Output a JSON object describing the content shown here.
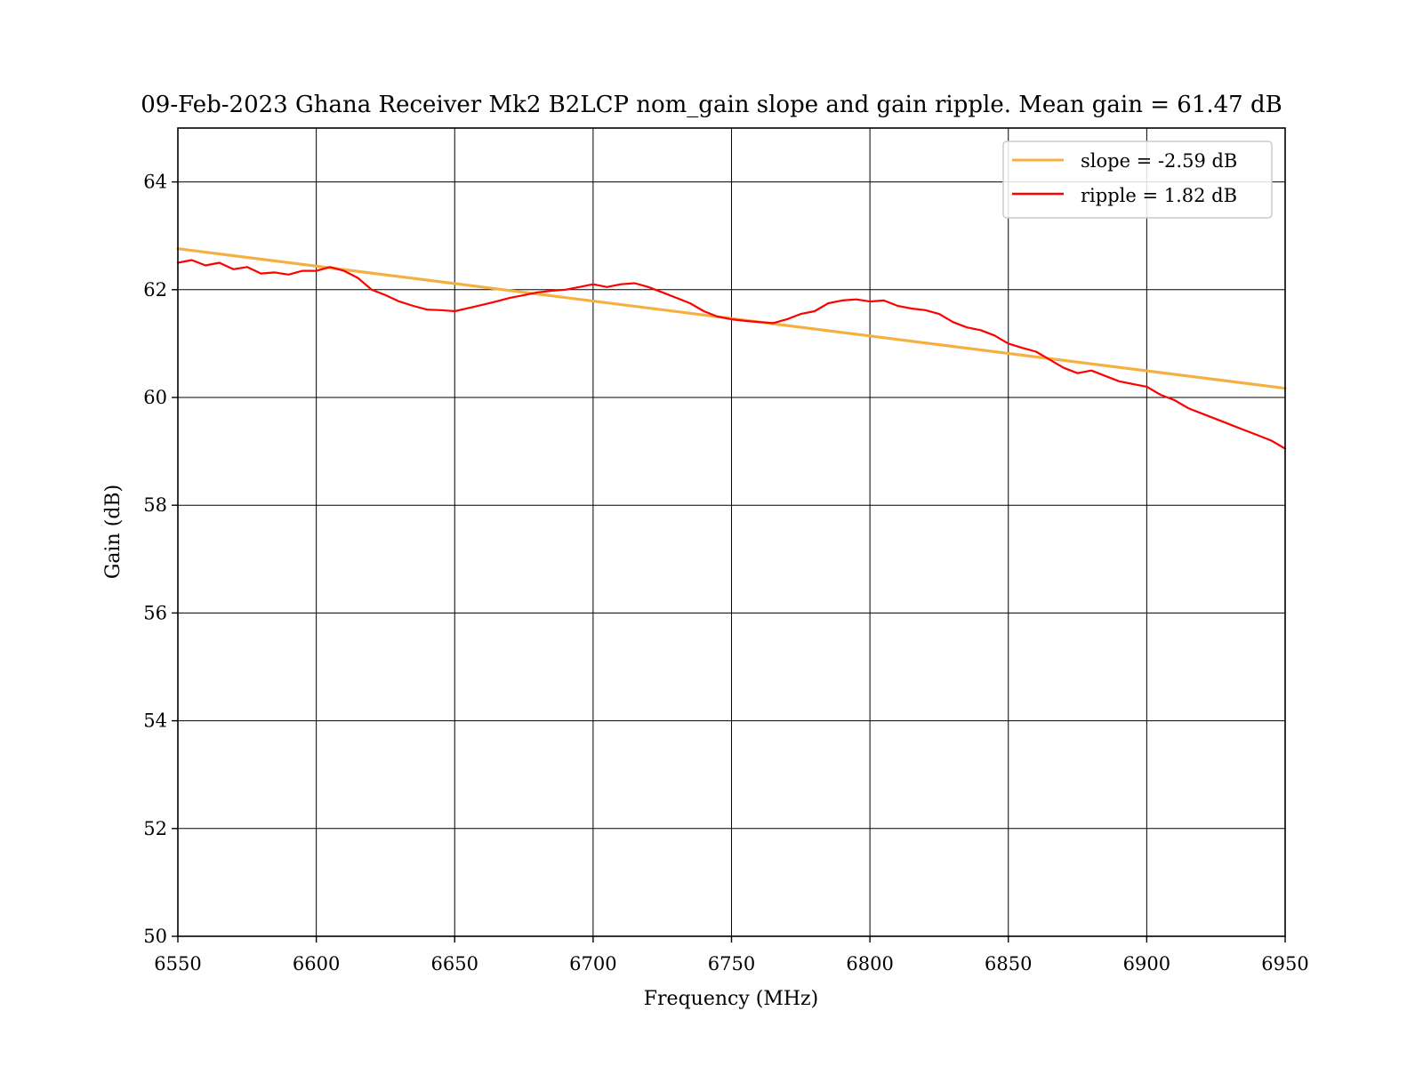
{
  "chart_data": {
    "type": "line",
    "title": "09-Feb-2023 Ghana Receiver Mk2 B2LCP nom_gain slope and gain ripple. Mean gain = 61.47 dB",
    "xlabel": "Frequency (MHz)",
    "ylabel": "Gain (dB)",
    "xlim": [
      6550,
      6950
    ],
    "ylim": [
      50,
      65
    ],
    "xticks": [
      6550,
      6600,
      6650,
      6700,
      6750,
      6800,
      6850,
      6900,
      6950
    ],
    "yticks": [
      50,
      52,
      54,
      56,
      58,
      60,
      62,
      64
    ],
    "grid": true,
    "legend_position": "top-right",
    "series": [
      {
        "name": "slope = -2.59 dB",
        "color": "#f5b041",
        "x": [
          6550,
          6950
        ],
        "y": [
          62.76,
          60.17
        ]
      },
      {
        "name": "ripple = 1.82 dB",
        "color": "#ff0000",
        "x": [
          6550,
          6555,
          6560,
          6565,
          6570,
          6575,
          6580,
          6585,
          6590,
          6595,
          6600,
          6605,
          6610,
          6615,
          6620,
          6625,
          6630,
          6635,
          6640,
          6645,
          6650,
          6655,
          6660,
          6665,
          6670,
          6675,
          6680,
          6685,
          6690,
          6695,
          6700,
          6705,
          6710,
          6715,
          6720,
          6725,
          6730,
          6735,
          6740,
          6745,
          6750,
          6755,
          6760,
          6765,
          6770,
          6775,
          6780,
          6785,
          6790,
          6795,
          6800,
          6805,
          6810,
          6815,
          6820,
          6825,
          6830,
          6835,
          6840,
          6845,
          6850,
          6855,
          6860,
          6865,
          6870,
          6875,
          6880,
          6885,
          6890,
          6895,
          6900,
          6905,
          6910,
          6915,
          6920,
          6925,
          6930,
          6935,
          6940,
          6945,
          6950
        ],
        "y": [
          62.5,
          62.55,
          62.45,
          62.5,
          62.38,
          62.42,
          62.3,
          62.32,
          62.28,
          62.35,
          62.35,
          62.42,
          62.35,
          62.22,
          62.0,
          61.9,
          61.78,
          61.7,
          61.63,
          61.62,
          61.6,
          61.66,
          61.72,
          61.78,
          61.85,
          61.9,
          61.95,
          61.98,
          62.0,
          62.05,
          62.1,
          62.05,
          62.1,
          62.12,
          62.05,
          61.95,
          61.85,
          61.75,
          61.6,
          61.5,
          61.45,
          61.42,
          61.4,
          61.38,
          61.45,
          61.55,
          61.6,
          61.75,
          61.8,
          61.82,
          61.78,
          61.8,
          61.7,
          61.65,
          61.62,
          61.55,
          61.4,
          61.3,
          61.25,
          61.15,
          61.0,
          60.92,
          60.85,
          60.7,
          60.55,
          60.45,
          60.5,
          60.4,
          60.3,
          60.25,
          60.2,
          60.05,
          59.95,
          59.8,
          59.7,
          59.6,
          59.5,
          59.4,
          59.3,
          59.2,
          59.05
        ]
      }
    ]
  }
}
